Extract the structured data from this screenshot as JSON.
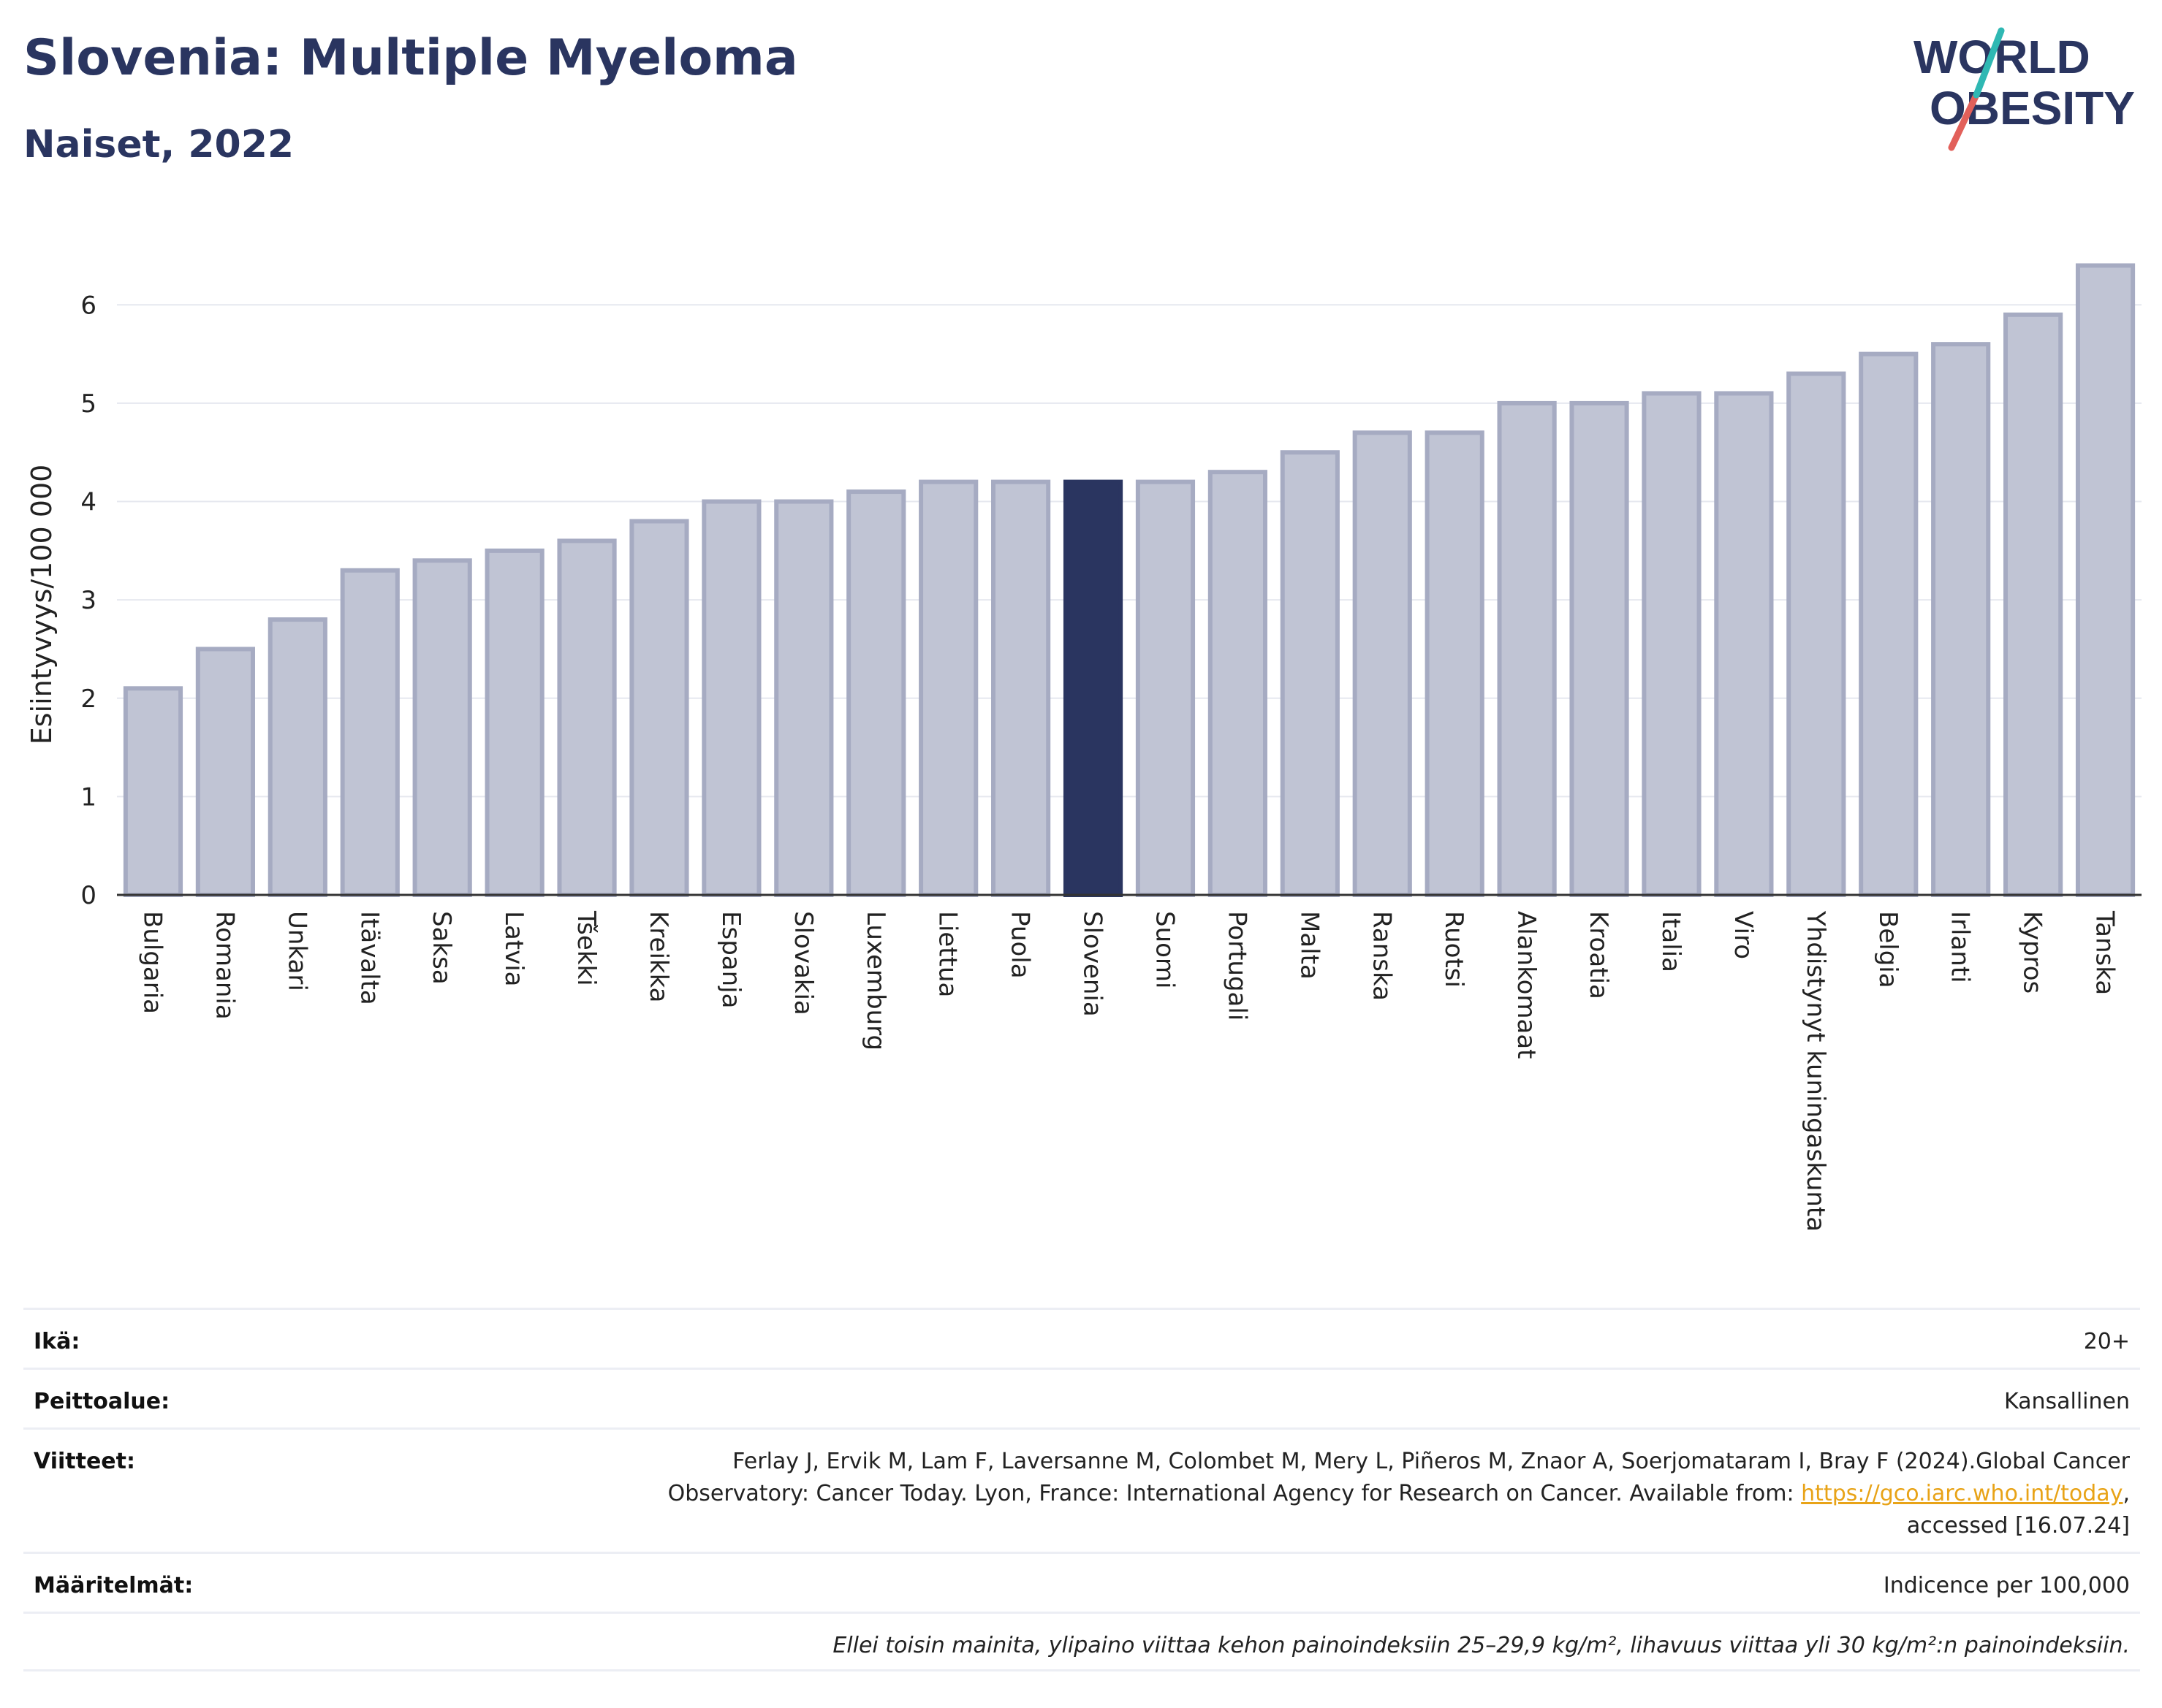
{
  "header": {
    "title": "Slovenia: Multiple Myeloma",
    "subtitle": "Naiset, 2022"
  },
  "logo": {
    "line1": "WORLD",
    "line2": "OBESITY",
    "colors": {
      "text": "#2a3560",
      "slash_teal": "#2fb8b3",
      "slash_red": "#e2605a"
    }
  },
  "colors": {
    "bar_default": "#c0c4d4",
    "bar_default_stroke": "#a6abc2",
    "bar_highlight": "#2a3560",
    "axis_text": "#222222",
    "grid": "#e6e8ef"
  },
  "chart_data": {
    "type": "bar",
    "title": "",
    "xlabel": "",
    "ylabel": "Esiintyvyys/100 000",
    "ylim": [
      0,
      6.5
    ],
    "yticks": [
      0,
      1,
      2,
      3,
      4,
      5,
      6
    ],
    "grid": true,
    "highlight": "Slovenia",
    "categories": [
      "Bulgaria",
      "Romania",
      "Unkari",
      "Itävalta",
      "Saksa",
      "Latvia",
      "Tšekki",
      "Kreikka",
      "Espanja",
      "Slovakia",
      "Luxemburg",
      "Liettua",
      "Puola",
      "Slovenia",
      "Suomi",
      "Portugali",
      "Malta",
      "Ranska",
      "Ruotsi",
      "Alankomaat",
      "Kroatia",
      "Italia",
      "Viro",
      "Yhdistynyt kuningaskunta",
      "Belgia",
      "Irlanti",
      "Kypros",
      "Tanska"
    ],
    "values": [
      2.1,
      2.5,
      2.8,
      3.3,
      3.4,
      3.5,
      3.6,
      3.8,
      4.0,
      4.0,
      4.1,
      4.2,
      4.2,
      4.2,
      4.2,
      4.3,
      4.5,
      4.7,
      4.7,
      5.0,
      5.0,
      5.1,
      5.1,
      5.3,
      5.5,
      5.6,
      5.9,
      6.4
    ]
  },
  "meta": {
    "age_label": "Ikä:",
    "age_value": "20+",
    "coverage_label": "Peittoalue:",
    "coverage_value": "Kansallinen",
    "references_label": "Viitteet:",
    "references_text_1": "Ferlay J, Ervik M, Lam F, Laversanne M, Colombet M, Mery L, Piñeros M, Znaor A, Soerjomataram I, Bray F (2024).Global Cancer Observatory: Cancer Today. Lyon, France: International Agency for Research on Cancer. Available from: ",
    "references_link": "https://gco.iarc.who.int/today",
    "references_text_2": ", accessed [16.07.24]",
    "definitions_label": "Määritelmät:",
    "definitions_value": "Indicence per 100,000",
    "note": "Ellei toisin mainita, ylipaino viittaa kehon painoindeksiin 25–29,9 kg/m², lihavuus viittaa yli 30 kg/m²:n painoindeksiin."
  }
}
